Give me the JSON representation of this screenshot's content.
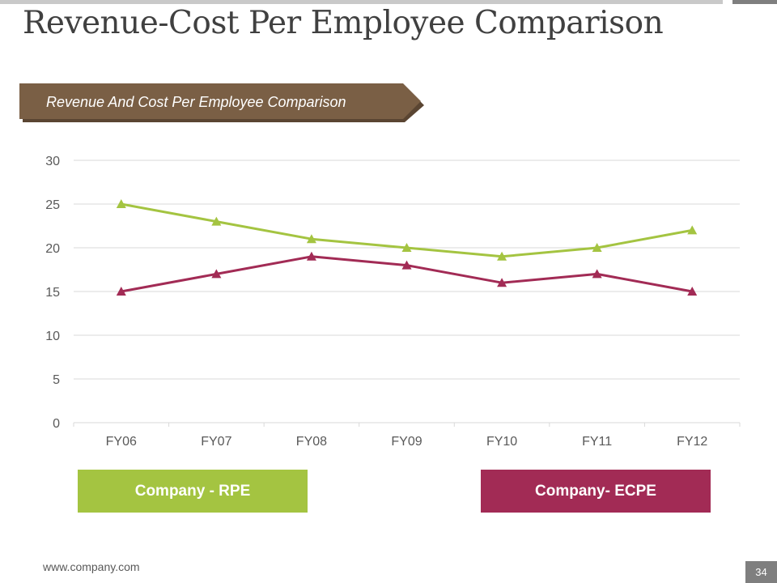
{
  "slide": {
    "title": "Revenue-Cost Per Employee Comparison",
    "banner": "Revenue And Cost Per Employee Comparison",
    "footer_url": "www.company.com",
    "page_number": "34"
  },
  "colors": {
    "accent_brown": "#7a5f45",
    "rpe_green": "#a4c441",
    "ecpe_maroon": "#a22b55",
    "gridline": "#d9d9d9"
  },
  "chart_data": {
    "type": "line",
    "title": "",
    "xlabel": "",
    "ylabel": "",
    "categories": [
      "FY06",
      "FY07",
      "FY08",
      "FY09",
      "FY10",
      "FY11",
      "FY12"
    ],
    "ylim": [
      0,
      30
    ],
    "yticks": [
      0,
      5,
      10,
      15,
      20,
      25,
      30
    ],
    "grid": true,
    "legend_position": "bottom",
    "marker": "triangle",
    "series": [
      {
        "name": "Company - RPE",
        "color": "#a4c441",
        "values": [
          25,
          23,
          21,
          20,
          19,
          20,
          22
        ]
      },
      {
        "name": "Company- ECPE",
        "color": "#a22b55",
        "values": [
          15,
          17,
          19,
          18,
          16,
          17,
          15
        ]
      }
    ]
  }
}
